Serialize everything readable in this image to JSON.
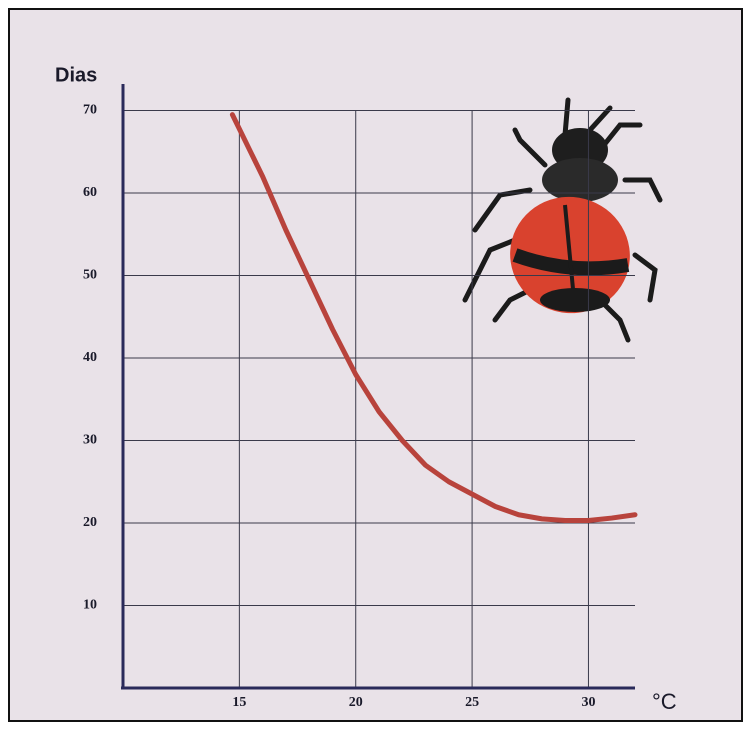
{
  "chart_data": {
    "type": "line",
    "ylabel": "Dias",
    "xlabel": "°C",
    "x": [
      14.7,
      16,
      17,
      18,
      19,
      20,
      21,
      22,
      23,
      24,
      25,
      26,
      27,
      28,
      29,
      30,
      31,
      32
    ],
    "values": [
      69.5,
      62,
      55.5,
      49.5,
      43.5,
      38,
      33.5,
      30,
      27,
      25,
      23.5,
      22,
      21,
      20.5,
      20.3,
      20.3,
      20.6,
      21
    ],
    "color": "#b8433c",
    "xlim": [
      10,
      32
    ],
    "ylim": [
      0,
      72
    ],
    "xticks": [
      15,
      20,
      25,
      30
    ],
    "yticks": [
      10,
      20,
      30,
      40,
      50,
      60,
      70
    ],
    "grid": true
  }
}
